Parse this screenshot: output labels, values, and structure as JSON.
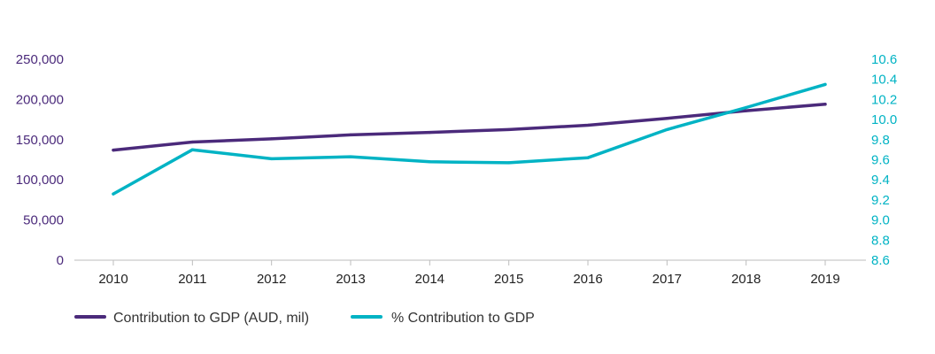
{
  "chart_data": {
    "type": "line",
    "title": "",
    "x": [
      "2010",
      "2011",
      "2012",
      "2013",
      "2014",
      "2015",
      "2016",
      "2017",
      "2018",
      "2019"
    ],
    "series": [
      {
        "name": "Contribution to GDP (AUD, mil)",
        "axis": "left",
        "color": "#4b2a7b",
        "values": [
          137000,
          147000,
          151000,
          156000,
          159000,
          162500,
          168000,
          176500,
          186000,
          194000
        ]
      },
      {
        "name": "% Contribution to GDP",
        "axis": "right",
        "color": "#00b3c4",
        "values": [
          9.26,
          9.7,
          9.61,
          9.63,
          9.58,
          9.57,
          9.62,
          9.9,
          10.12,
          10.35
        ]
      }
    ],
    "y_left": {
      "lim": [
        0,
        250000
      ],
      "ticks": [
        0,
        50000,
        100000,
        150000,
        200000,
        250000
      ],
      "tick_labels": [
        "0",
        "50,000",
        "100,000",
        "150,000",
        "200,000",
        "250,000"
      ],
      "color": "#4b2a7b"
    },
    "y_right": {
      "lim": [
        8.6,
        10.6
      ],
      "ticks": [
        8.6,
        8.8,
        9.0,
        9.2,
        9.4,
        9.6,
        9.8,
        10.0,
        10.2,
        10.4,
        10.6
      ],
      "tick_labels": [
        "8.6",
        "8.8",
        "9.0",
        "9.2",
        "9.4",
        "9.6",
        "9.8",
        "10.0",
        "10.2",
        "10.4",
        "10.6"
      ],
      "color": "#00b3c4"
    },
    "grid": false,
    "legend": "bottom-left"
  }
}
